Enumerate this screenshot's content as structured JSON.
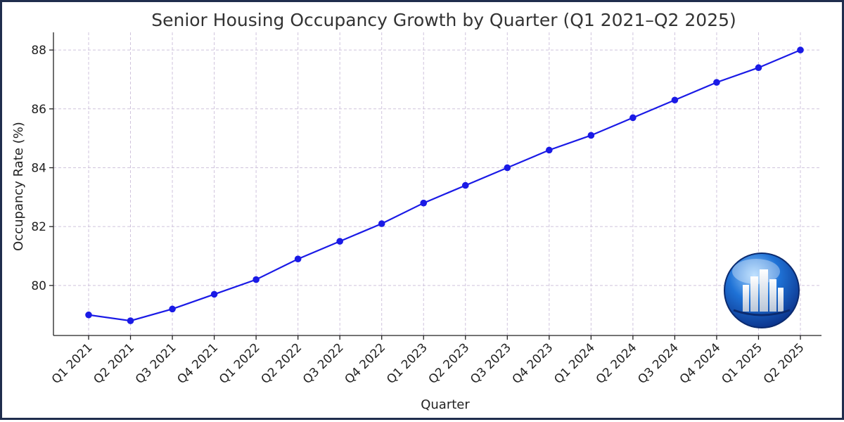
{
  "chart_data": {
    "type": "line",
    "title": "Senior Housing Occupancy Growth by Quarter (Q1 2021–Q2 2025)",
    "xlabel": "Quarter",
    "ylabel": "Occupancy Rate (%)",
    "categories": [
      "Q1 2021",
      "Q2 2021",
      "Q3 2021",
      "Q4 2021",
      "Q1 2022",
      "Q2 2022",
      "Q3 2022",
      "Q4 2022",
      "Q1 2023",
      "Q2 2023",
      "Q3 2023",
      "Q4 2023",
      "Q1 2024",
      "Q2 2024",
      "Q3 2024",
      "Q4 2024",
      "Q1 2025",
      "Q2 2025"
    ],
    "series": [
      {
        "values": [
          79.0,
          78.8,
          79.2,
          79.7,
          80.2,
          80.9,
          81.5,
          82.1,
          82.8,
          83.4,
          84.0,
          84.6,
          85.1,
          85.7,
          86.3,
          86.9,
          87.4,
          88.0
        ]
      }
    ],
    "ylim": [
      78.3,
      88.6
    ],
    "yticks": [
      80,
      82,
      84,
      86,
      88
    ],
    "grid": true,
    "line_color": "#1a1ae6"
  },
  "logo": {
    "name": "building-globe-logo"
  }
}
